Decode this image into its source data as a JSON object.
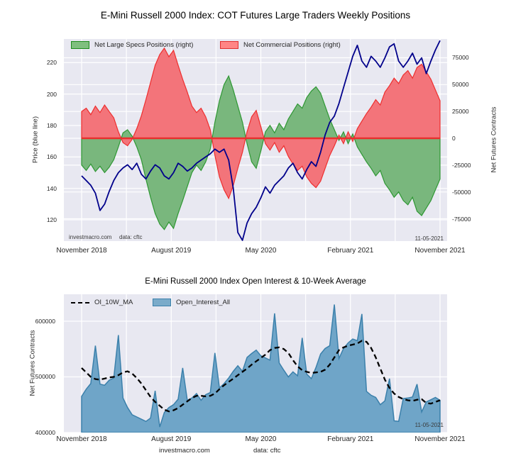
{
  "caption": {
    "site": "investmacro.com",
    "source": "data: cftc"
  },
  "chart_data": [
    {
      "type": "area",
      "title": "E-Mini Russell 2000 Index: COT Futures Large Traders Weekly Positions",
      "x_start_label": "November 2018",
      "x_ticks": [
        "November 2018",
        "August 2019",
        "May 2020",
        "February 2021",
        "November 2021"
      ],
      "x_weeks_step": 2,
      "left_axis": {
        "label": "Price (blue line)",
        "ticks": [
          "220",
          "200",
          "180",
          "160",
          "140",
          "120"
        ],
        "tick_values": [
          220,
          200,
          180,
          160,
          140,
          120
        ],
        "range": [
          106.5,
          235
        ]
      },
      "right_axis": {
        "label": "Net Futures Contracts",
        "ticks": [
          "75000",
          "50000",
          "25000",
          "0",
          "-25000",
          "-50000",
          "-75000"
        ],
        "tick_values": [
          75000,
          50000,
          25000,
          0,
          -25000,
          -50000,
          -75000
        ],
        "range": [
          -95800,
          92500
        ]
      },
      "grid": true,
      "legend_position": "upper left",
      "zero_line_color": "#e8302e",
      "annotations": [
        "investmacro.com",
        "data: cftc",
        "11-05-2021"
      ],
      "series": [
        {
          "name": "Net Large Specs Positions (right)",
          "kind": "area",
          "axis": "right",
          "fill_color": "#79b77d",
          "edge_color": "#2e9733",
          "values": [
            -25000,
            -30000,
            -24000,
            -31000,
            -26000,
            -32000,
            -27000,
            -20000,
            -8000,
            5000,
            8000,
            2000,
            -8000,
            -20000,
            -38000,
            -55000,
            -70000,
            -80000,
            -85000,
            -78000,
            -84000,
            -70000,
            -58000,
            -45000,
            -32000,
            -25000,
            -30000,
            -22000,
            -10000,
            15000,
            35000,
            50000,
            58000,
            45000,
            30000,
            15000,
            -5000,
            -22000,
            -28000,
            -12000,
            6000,
            12000,
            5000,
            14000,
            8000,
            18000,
            25000,
            32000,
            28000,
            38000,
            44000,
            48000,
            42000,
            30000,
            18000,
            8000,
            -2000,
            6000,
            -5000,
            4000,
            -8000,
            -15000,
            -22000,
            -28000,
            -35000,
            -30000,
            -42000,
            -48000,
            -55000,
            -50000,
            -58000,
            -62000,
            -55000,
            -68000,
            -72000,
            -65000,
            -58000,
            -48000,
            -38000
          ]
        },
        {
          "name": "Net Commercial Positions (right)",
          "kind": "area",
          "axis": "right",
          "fill_color": "#f3747a",
          "edge_color": "#ee2e2e",
          "values": [
            25000,
            28000,
            22000,
            30000,
            24000,
            31000,
            25000,
            19000,
            6000,
            -4000,
            -7000,
            -1000,
            9000,
            21000,
            36000,
            52000,
            68000,
            78000,
            84000,
            76000,
            82000,
            68000,
            55000,
            43000,
            30000,
            24000,
            28000,
            20000,
            8000,
            -16000,
            -36000,
            -48000,
            -56000,
            -44000,
            -28000,
            -13000,
            6000,
            20000,
            26000,
            11000,
            -5000,
            -11000,
            -4000,
            -13000,
            -7000,
            -17000,
            -24000,
            -30000,
            -26000,
            -36000,
            -42000,
            -46000,
            -40000,
            -28000,
            -16000,
            -7000,
            3000,
            -5000,
            6000,
            -3000,
            9000,
            16000,
            23000,
            29000,
            36000,
            31000,
            43000,
            49000,
            56000,
            51000,
            59000,
            63000,
            56000,
            66000,
            69000,
            62000,
            55000,
            45000,
            35000
          ]
        },
        {
          "name": "Price",
          "kind": "line",
          "axis": "left",
          "color": "#00008b",
          "values": [
            148,
            145,
            142,
            137,
            126,
            130,
            138,
            145,
            150,
            153,
            155,
            152,
            156,
            149,
            146,
            151,
            155,
            153,
            148,
            146,
            150,
            156,
            154,
            151,
            153,
            156,
            158,
            160,
            162,
            165,
            163,
            165,
            158,
            140,
            112,
            107,
            118,
            124,
            128,
            134,
            141,
            137,
            142,
            145,
            148,
            153,
            156,
            150,
            146,
            152,
            157,
            154,
            163,
            174,
            182,
            186,
            194,
            204,
            214,
            224,
            231,
            221,
            217,
            224,
            221,
            217,
            223,
            230,
            232,
            221,
            217,
            221,
            226,
            219,
            223,
            213,
            221,
            228,
            234
          ]
        }
      ]
    },
    {
      "type": "area",
      "title": "E-Mini Russell 2000 Index Open Interest & 10-Week Average",
      "x_ticks": [
        "November 2018",
        "August 2019",
        "May 2020",
        "February 2021",
        "November 2021"
      ],
      "x_weeks_step": 2,
      "y_axis": {
        "label": "Net Futures Contracts",
        "ticks": [
          "600000",
          "500000",
          "400000"
        ],
        "tick_values": [
          600000,
          500000,
          400000
        ],
        "range": [
          400000,
          648400
        ]
      },
      "grid": true,
      "legend_position": "upper left",
      "annotations": [
        "11-05-2021"
      ],
      "series": [
        {
          "name": "OI_10W_MA",
          "kind": "dashed-line",
          "color": "#000000",
          "values": [
            516000,
            508000,
            500000,
            496000,
            495000,
            497000,
            499000,
            500000,
            503000,
            508000,
            510000,
            506000,
            498000,
            488000,
            476000,
            464000,
            455000,
            448000,
            441000,
            438000,
            440000,
            444000,
            450000,
            456000,
            462000,
            466000,
            466000,
            465000,
            466000,
            470000,
            478000,
            485000,
            491000,
            497000,
            503000,
            509000,
            515000,
            522000,
            528000,
            534000,
            540000,
            548000,
            552000,
            553000,
            550000,
            543000,
            530000,
            519000,
            512000,
            509000,
            507000,
            508000,
            509000,
            513000,
            522000,
            535000,
            548000,
            553000,
            556000,
            558000,
            560000,
            565000,
            563000,
            552000,
            535000,
            515000,
            495000,
            480000,
            470000,
            464000,
            460000,
            458000,
            457000,
            459000,
            460000,
            453000,
            452000,
            455000,
            458000
          ]
        },
        {
          "name": "Open_Interest_All",
          "kind": "area",
          "fill_color": "#6fa5c8",
          "edge_color": "#3b80ab",
          "values": [
            465000,
            478000,
            488000,
            556000,
            487000,
            485000,
            494000,
            498000,
            575000,
            462000,
            445000,
            432000,
            428000,
            424000,
            420000,
            426000,
            475000,
            410000,
            436000,
            445000,
            450000,
            460000,
            516000,
            458000,
            462000,
            470000,
            458000,
            468000,
            472000,
            543000,
            480000,
            488000,
            498000,
            510000,
            520000,
            510000,
            535000,
            542000,
            548000,
            538000,
            534000,
            530000,
            614000,
            525000,
            512000,
            500000,
            509000,
            502000,
            570000,
            505000,
            497000,
            517000,
            541000,
            551000,
            556000,
            630000,
            533000,
            551000,
            561000,
            568000,
            565000,
            613000,
            474000,
            467000,
            463000,
            450000,
            457000,
            497000,
            421000,
            420000,
            461000,
            462000,
            464000,
            487000,
            437000,
            455000,
            459000,
            463000,
            458000
          ]
        }
      ]
    }
  ]
}
